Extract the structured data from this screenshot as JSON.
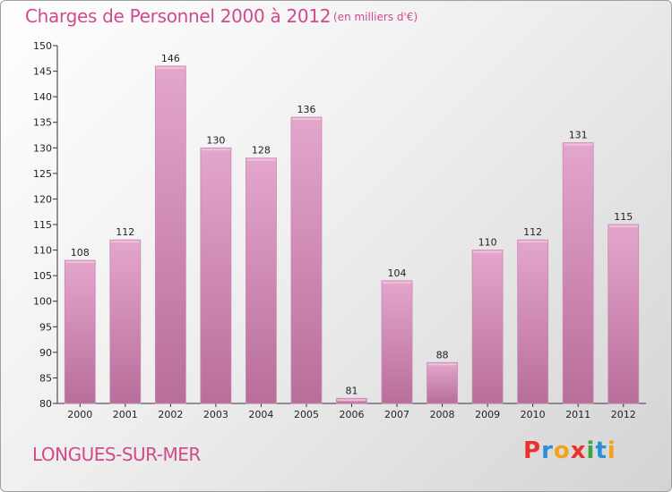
{
  "header": {
    "title": "Charges de Personnel 2000 à 2012",
    "subtitle": "(en milliers d'€)"
  },
  "footer": {
    "town": "LONGUES-SUR-MER",
    "brand": "Proxiti"
  },
  "colors": {
    "title": "#d04a8c",
    "bar_top": "#e4a6cd",
    "bar_bottom": "#b86e9a",
    "brand_letters": [
      "#e8322b",
      "#2b8fd6",
      "#f2a31a",
      "#e8322b",
      "#3aa542",
      "#2b8fd6",
      "#f2a31a"
    ]
  },
  "chart_data": {
    "type": "bar",
    "categories": [
      "2000",
      "2001",
      "2002",
      "2003",
      "2004",
      "2005",
      "2006",
      "2007",
      "2008",
      "2009",
      "2010",
      "2011",
      "2012"
    ],
    "values": [
      108,
      112,
      146,
      130,
      128,
      136,
      81,
      104,
      88,
      110,
      112,
      131,
      115
    ],
    "ylim": [
      80,
      150
    ],
    "yticks": [
      80,
      85,
      90,
      95,
      100,
      105,
      110,
      115,
      120,
      125,
      130,
      135,
      140,
      145,
      150
    ],
    "grid": false,
    "legend": "none"
  }
}
